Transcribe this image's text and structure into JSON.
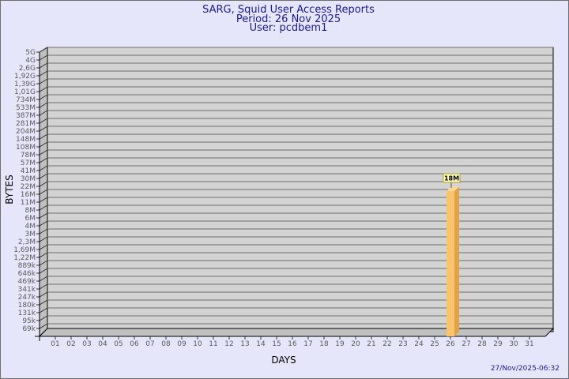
{
  "chart_data": {
    "type": "bar",
    "title": "SARG, Squid User Access Reports",
    "subtitle_lines": [
      "Period: 26 Nov 2025",
      "User: pcdbem1"
    ],
    "xlabel": "DAYS",
    "ylabel": "BYTES",
    "y_scale": "log",
    "ylim": [
      69000,
      5000000000
    ],
    "grid": true,
    "three_d": true,
    "categories": [
      "01",
      "02",
      "03",
      "04",
      "05",
      "06",
      "07",
      "08",
      "09",
      "10",
      "11",
      "12",
      "13",
      "14",
      "15",
      "16",
      "17",
      "18",
      "19",
      "20",
      "21",
      "22",
      "23",
      "24",
      "25",
      "26",
      "27",
      "28",
      "29",
      "30",
      "31"
    ],
    "y_tick_labels": [
      "5G",
      "4G",
      "2,6G",
      "1,92G",
      "1,39G",
      "1,01G",
      "734M",
      "533M",
      "387M",
      "281M",
      "204M",
      "148M",
      "108M",
      "78M",
      "57M",
      "41M",
      "30M",
      "22M",
      "16M",
      "11M",
      "8M",
      "6M",
      "4M",
      "3M",
      "2,3M",
      "1,69M",
      "1,22M",
      "889k",
      "646k",
      "469k",
      "341k",
      "247k",
      "180k",
      "131k",
      "95k",
      "69k"
    ],
    "series": [
      {
        "points": [
          {
            "category": "26",
            "value": 18000000,
            "label": "18M"
          }
        ]
      }
    ],
    "colors": {
      "background": "#e6e6fa",
      "plot": "#d3d3d3",
      "wall": "#c0c0c0",
      "grid": "#6e6e6e",
      "bar_front": "#f9c46b",
      "bar_side": "#e0a447",
      "bar_top": "#fbd898",
      "title": "#1a1a8c",
      "value_label_bg": "#ffffc0",
      "value_label_border": "#b0a020"
    }
  },
  "footer": {
    "timestamp": "27/Nov/2025-06:32"
  }
}
